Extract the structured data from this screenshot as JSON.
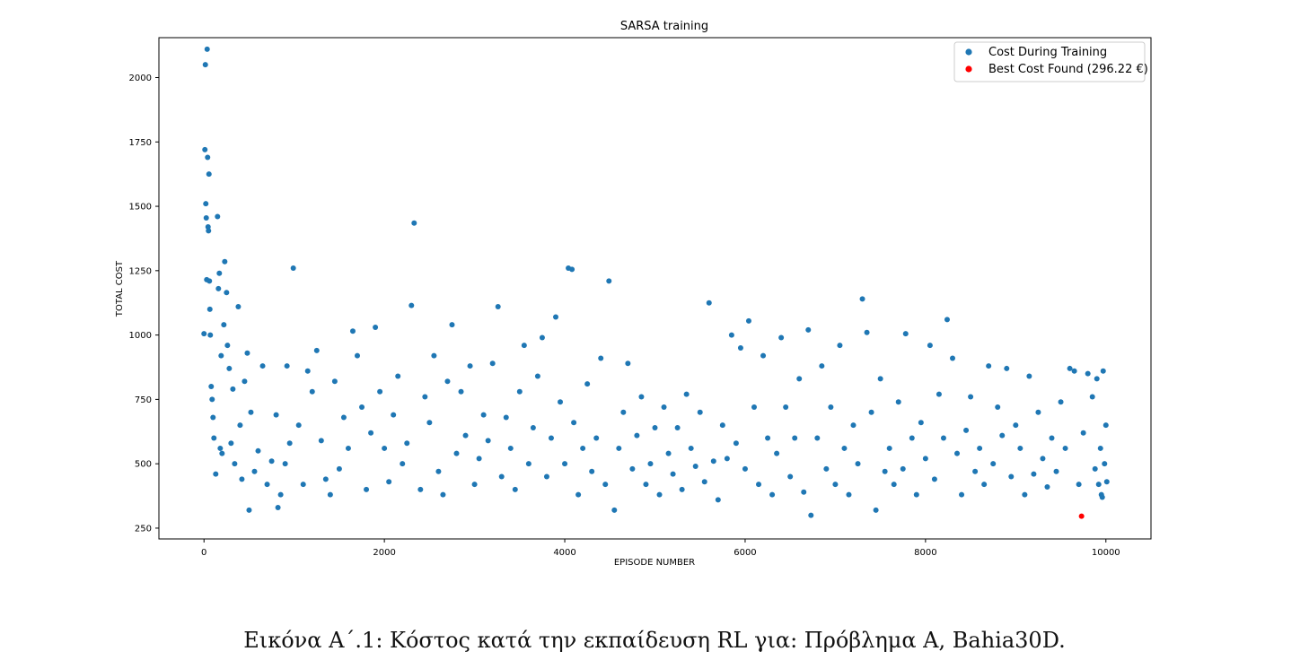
{
  "caption": "Εικόνα Α΄.1: Κόστος κατά την εκπαίδευση RL για: Πρόβλημα A, Bahia30D.",
  "chart_data": {
    "type": "scatter",
    "title": "SARSA training",
    "xlabel": "EPISODE NUMBER",
    "ylabel": "TOTAL COST",
    "xlim": [
      -500,
      10500
    ],
    "ylim": [
      208,
      2155
    ],
    "xticks": [
      0,
      2000,
      4000,
      6000,
      8000,
      10000
    ],
    "yticks": [
      250,
      500,
      750,
      1000,
      1250,
      1500,
      1750,
      2000
    ],
    "grid": false,
    "legend_position": "top-right",
    "series": [
      {
        "name": "Cost During Training",
        "color": "#1f77b4",
        "points": [
          [
            0,
            1005
          ],
          [
            10,
            1720
          ],
          [
            15,
            2050
          ],
          [
            20,
            1510
          ],
          [
            25,
            1455
          ],
          [
            30,
            1215
          ],
          [
            35,
            2110
          ],
          [
            40,
            1690
          ],
          [
            45,
            1420
          ],
          [
            50,
            1405
          ],
          [
            55,
            1625
          ],
          [
            60,
            1210
          ],
          [
            65,
            1100
          ],
          [
            70,
            1000
          ],
          [
            80,
            800
          ],
          [
            90,
            750
          ],
          [
            100,
            680
          ],
          [
            110,
            600
          ],
          [
            130,
            460
          ],
          [
            150,
            1460
          ],
          [
            160,
            1180
          ],
          [
            170,
            1240
          ],
          [
            180,
            560
          ],
          [
            190,
            920
          ],
          [
            200,
            540
          ],
          [
            220,
            1040
          ],
          [
            230,
            1285
          ],
          [
            250,
            1165
          ],
          [
            260,
            960
          ],
          [
            280,
            870
          ],
          [
            300,
            580
          ],
          [
            320,
            790
          ],
          [
            340,
            500
          ],
          [
            380,
            1110
          ],
          [
            400,
            650
          ],
          [
            420,
            440
          ],
          [
            450,
            820
          ],
          [
            480,
            930
          ],
          [
            500,
            320
          ],
          [
            520,
            700
          ],
          [
            560,
            470
          ],
          [
            600,
            550
          ],
          [
            650,
            880
          ],
          [
            700,
            420
          ],
          [
            750,
            510
          ],
          [
            800,
            690
          ],
          [
            820,
            330
          ],
          [
            850,
            380
          ],
          [
            900,
            500
          ],
          [
            920,
            880
          ],
          [
            950,
            580
          ],
          [
            990,
            1260
          ],
          [
            1050,
            650
          ],
          [
            1100,
            420
          ],
          [
            1150,
            860
          ],
          [
            1200,
            780
          ],
          [
            1250,
            940
          ],
          [
            1300,
            590
          ],
          [
            1350,
            440
          ],
          [
            1400,
            380
          ],
          [
            1450,
            820
          ],
          [
            1500,
            480
          ],
          [
            1550,
            680
          ],
          [
            1600,
            560
          ],
          [
            1650,
            1015
          ],
          [
            1700,
            920
          ],
          [
            1750,
            720
          ],
          [
            1800,
            400
          ],
          [
            1850,
            620
          ],
          [
            1900,
            1030
          ],
          [
            1950,
            780
          ],
          [
            2000,
            560
          ],
          [
            2050,
            430
          ],
          [
            2100,
            690
          ],
          [
            2150,
            840
          ],
          [
            2200,
            500
          ],
          [
            2250,
            580
          ],
          [
            2300,
            1115
          ],
          [
            2330,
            1435
          ],
          [
            2400,
            400
          ],
          [
            2450,
            760
          ],
          [
            2500,
            660
          ],
          [
            2550,
            920
          ],
          [
            2600,
            470
          ],
          [
            2650,
            380
          ],
          [
            2700,
            820
          ],
          [
            2750,
            1040
          ],
          [
            2800,
            540
          ],
          [
            2850,
            780
          ],
          [
            2900,
            610
          ],
          [
            2950,
            880
          ],
          [
            3000,
            420
          ],
          [
            3050,
            520
          ],
          [
            3100,
            690
          ],
          [
            3150,
            590
          ],
          [
            3200,
            890
          ],
          [
            3260,
            1110
          ],
          [
            3300,
            450
          ],
          [
            3350,
            680
          ],
          [
            3400,
            560
          ],
          [
            3450,
            400
          ],
          [
            3500,
            780
          ],
          [
            3550,
            960
          ],
          [
            3600,
            500
          ],
          [
            3650,
            640
          ],
          [
            3700,
            840
          ],
          [
            3750,
            990
          ],
          [
            3800,
            450
          ],
          [
            3850,
            600
          ],
          [
            3900,
            1070
          ],
          [
            3950,
            740
          ],
          [
            4000,
            500
          ],
          [
            4040,
            1260
          ],
          [
            4080,
            1255
          ],
          [
            4100,
            660
          ],
          [
            4150,
            380
          ],
          [
            4200,
            560
          ],
          [
            4250,
            810
          ],
          [
            4300,
            470
          ],
          [
            4350,
            600
          ],
          [
            4400,
            910
          ],
          [
            4450,
            420
          ],
          [
            4490,
            1210
          ],
          [
            4550,
            320
          ],
          [
            4600,
            560
          ],
          [
            4650,
            700
          ],
          [
            4700,
            890
          ],
          [
            4750,
            480
          ],
          [
            4800,
            610
          ],
          [
            4850,
            760
          ],
          [
            4900,
            420
          ],
          [
            4950,
            500
          ],
          [
            5000,
            640
          ],
          [
            5050,
            380
          ],
          [
            5100,
            720
          ],
          [
            5150,
            540
          ],
          [
            5200,
            460
          ],
          [
            5250,
            640
          ],
          [
            5300,
            400
          ],
          [
            5350,
            770
          ],
          [
            5400,
            560
          ],
          [
            5450,
            490
          ],
          [
            5500,
            700
          ],
          [
            5550,
            430
          ],
          [
            5600,
            1125
          ],
          [
            5650,
            510
          ],
          [
            5700,
            360
          ],
          [
            5750,
            650
          ],
          [
            5800,
            520
          ],
          [
            5850,
            1000
          ],
          [
            5900,
            580
          ],
          [
            5950,
            950
          ],
          [
            6000,
            480
          ],
          [
            6040,
            1055
          ],
          [
            6100,
            720
          ],
          [
            6150,
            420
          ],
          [
            6200,
            920
          ],
          [
            6250,
            600
          ],
          [
            6300,
            380
          ],
          [
            6350,
            540
          ],
          [
            6400,
            990
          ],
          [
            6450,
            720
          ],
          [
            6500,
            450
          ],
          [
            6550,
            600
          ],
          [
            6600,
            830
          ],
          [
            6650,
            390
          ],
          [
            6700,
            1020
          ],
          [
            6730,
            300
          ],
          [
            6800,
            600
          ],
          [
            6850,
            880
          ],
          [
            6900,
            480
          ],
          [
            6950,
            720
          ],
          [
            7000,
            420
          ],
          [
            7050,
            960
          ],
          [
            7100,
            560
          ],
          [
            7150,
            380
          ],
          [
            7200,
            650
          ],
          [
            7250,
            500
          ],
          [
            7300,
            1140
          ],
          [
            7350,
            1010
          ],
          [
            7400,
            700
          ],
          [
            7450,
            320
          ],
          [
            7500,
            830
          ],
          [
            7550,
            470
          ],
          [
            7600,
            560
          ],
          [
            7650,
            420
          ],
          [
            7700,
            740
          ],
          [
            7750,
            480
          ],
          [
            7780,
            1005
          ],
          [
            7850,
            600
          ],
          [
            7900,
            380
          ],
          [
            7950,
            660
          ],
          [
            8000,
            520
          ],
          [
            8050,
            960
          ],
          [
            8100,
            440
          ],
          [
            8150,
            770
          ],
          [
            8200,
            600
          ],
          [
            8240,
            1060
          ],
          [
            8300,
            910
          ],
          [
            8350,
            540
          ],
          [
            8400,
            380
          ],
          [
            8450,
            630
          ],
          [
            8500,
            760
          ],
          [
            8550,
            470
          ],
          [
            8600,
            560
          ],
          [
            8650,
            420
          ],
          [
            8700,
            880
          ],
          [
            8750,
            500
          ],
          [
            8800,
            720
          ],
          [
            8850,
            610
          ],
          [
            8900,
            870
          ],
          [
            8950,
            450
          ],
          [
            9000,
            650
          ],
          [
            9050,
            560
          ],
          [
            9100,
            380
          ],
          [
            9150,
            840
          ],
          [
            9200,
            460
          ],
          [
            9250,
            700
          ],
          [
            9300,
            520
          ],
          [
            9350,
            410
          ],
          [
            9400,
            600
          ],
          [
            9450,
            470
          ],
          [
            9500,
            740
          ],
          [
            9550,
            560
          ],
          [
            9600,
            870
          ],
          [
            9650,
            860
          ],
          [
            9700,
            420
          ],
          [
            9750,
            620
          ],
          [
            9800,
            850
          ],
          [
            9850,
            760
          ],
          [
            9880,
            480
          ],
          [
            9900,
            830
          ],
          [
            9920,
            420
          ],
          [
            9950,
            380
          ],
          [
            9970,
            860
          ],
          [
            9985,
            500
          ],
          [
            10000,
            650
          ],
          [
            10010,
            430
          ],
          [
            9960,
            370
          ],
          [
            9940,
            560
          ]
        ]
      },
      {
        "name": "Best Cost Found (296.22 €)",
        "color": "#ff0000",
        "points": [
          [
            9730,
            296.22
          ]
        ]
      }
    ]
  }
}
